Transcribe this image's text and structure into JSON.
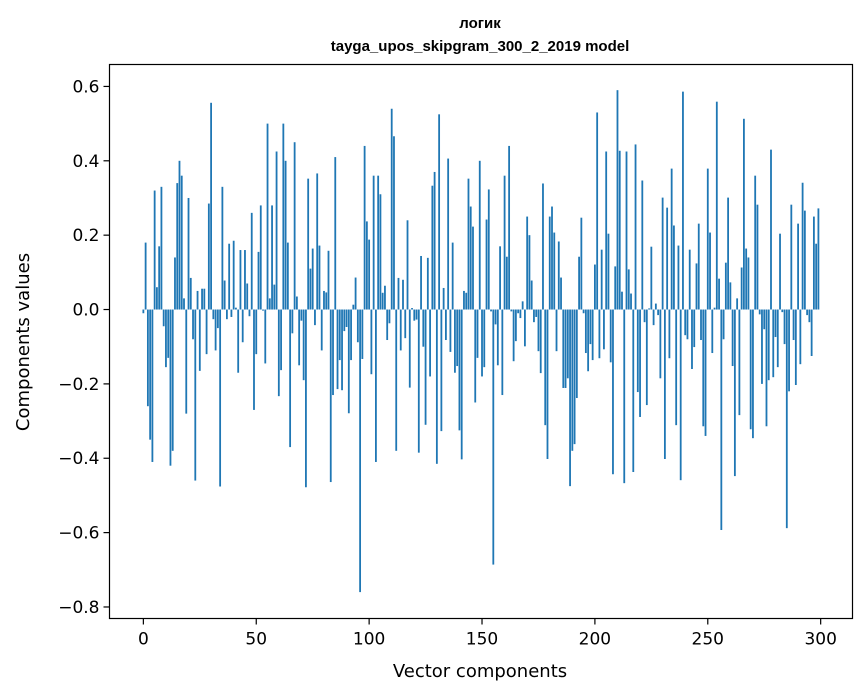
{
  "chart_data": {
    "type": "bar",
    "title": "логик",
    "subtitle": "tayga_upos_skipgram_300_2_2019 model",
    "xlabel": "Vector components",
    "ylabel": "Components values",
    "xlim": [
      -15.0,
      314.1
    ],
    "ylim": [
      -0.831,
      0.659
    ],
    "xticks": [
      0,
      50,
      100,
      150,
      200,
      250,
      300
    ],
    "xtick_labels": [
      "0",
      "50",
      "100",
      "150",
      "200",
      "250",
      "300"
    ],
    "yticks": [
      0.6,
      0.4,
      0.2,
      0.0,
      -0.2,
      -0.4,
      -0.6,
      -0.8
    ],
    "ytick_labels": [
      "0.6",
      "0.4",
      "0.2",
      "0.0",
      "−0.2",
      "−0.4",
      "−0.6",
      "−0.8"
    ],
    "grid": false,
    "bar_width": 0.8,
    "color": "#1f77b4",
    "values": [
      -0.01,
      0.18,
      -0.26,
      -0.35,
      -0.41,
      0.32,
      0.06,
      0.17,
      0.33,
      -0.045,
      -0.155,
      -0.13,
      -0.42,
      -0.38,
      0.14,
      0.34,
      0.4,
      0.36,
      0.03,
      -0.28,
      0.3,
      0.085,
      -0.08,
      -0.46,
      0.05,
      -0.165,
      0.056,
      0.056,
      -0.12,
      0.285,
      0.556,
      -0.026,
      -0.11,
      -0.05,
      -0.476,
      0.33,
      0.078,
      -0.026,
      0.177,
      -0.02,
      0.185,
      0.005,
      -0.17,
      0.16,
      -0.088,
      0.16,
      0.07,
      -0.018,
      0.26,
      -0.27,
      -0.12,
      0.155,
      0.28,
      -0.003,
      -0.145,
      0.5,
      0.03,
      0.28,
      0.067,
      0.425,
      -0.233,
      -0.163,
      0.5,
      0.4,
      0.18,
      -0.37,
      -0.064,
      0.45,
      0.035,
      -0.15,
      -0.03,
      -0.19,
      -0.478,
      0.352,
      0.11,
      0.164,
      -0.042,
      0.366,
      0.172,
      -0.11,
      0.05,
      0.046,
      0.158,
      -0.464,
      -0.23,
      0.41,
      -0.214,
      -0.136,
      -0.217,
      -0.058,
      -0.047,
      -0.279,
      -0.136,
      0.013,
      0.086,
      -0.088,
      -0.76,
      -0.133,
      0.44,
      0.237,
      0.188,
      -0.174,
      0.36,
      -0.41,
      0.36,
      0.31,
      0.045,
      0.064,
      -0.082,
      -0.037,
      0.54,
      0.466,
      -0.38,
      0.085,
      -0.11,
      0.08,
      -0.077,
      0.24,
      -0.21,
      0.004,
      -0.03,
      -0.027,
      -0.385,
      0.144,
      -0.1,
      -0.31,
      0.139,
      -0.18,
      0.333,
      0.37,
      -0.415,
      0.525,
      -0.327,
      0.058,
      -0.082,
      0.406,
      -0.114,
      0.18,
      -0.17,
      -0.152,
      -0.325,
      -0.403,
      0.05,
      0.045,
      0.352,
      0.277,
      0.223,
      -0.25,
      -0.13,
      0.4,
      -0.18,
      -0.155,
      0.242,
      0.323,
      -0.005,
      -0.686,
      -0.04,
      -0.15,
      0.17,
      -0.23,
      0.36,
      0.142,
      0.44,
      -0.005,
      -0.139,
      -0.085,
      -0.01,
      -0.023,
      0.022,
      -0.099,
      0.25,
      0.2,
      0.078,
      -0.034,
      -0.02,
      -0.112,
      -0.171,
      0.339,
      -0.311,
      -0.402,
      0.25,
      0.277,
      0.207,
      -0.112,
      0.183,
      0.086,
      -0.211,
      -0.211,
      -0.185,
      -0.475,
      -0.38,
      -0.362,
      -0.238,
      0.142,
      0.247,
      -0.01,
      -0.117,
      -0.166,
      -0.093,
      -0.136,
      0.121,
      0.53,
      -0.131,
      0.161,
      -0.107,
      0.425,
      0.204,
      -0.142,
      -0.443,
      0.116,
      0.59,
      0.427,
      0.048,
      -0.467,
      0.425,
      0.108,
      0.043,
      -0.437,
      0.444,
      -0.222,
      -0.289,
      0.347,
      -0.034,
      -0.257,
      0.003,
      0.169,
      -0.042,
      0.016,
      -0.015,
      -0.185,
      0.301,
      -0.402,
      0.274,
      -0.131,
      0.379,
      0.226,
      -0.311,
      0.172,
      -0.459,
      0.586,
      -0.069,
      -0.08,
      0.161,
      -0.16,
      -0.101,
      0.124,
      0.231,
      -0.082,
      -0.314,
      -0.34,
      0.379,
      0.207,
      -0.117,
      0.005,
      0.559,
      0.083,
      -0.593,
      -0.08,
      0.126,
      0.301,
      0.073,
      -0.152,
      -0.448,
      0.03,
      -0.284,
      0.113,
      0.513,
      0.164,
      0.14,
      -0.322,
      -0.346,
      0.36,
      0.282,
      -0.013,
      -0.2,
      -0.053,
      -0.314,
      -0.19,
      0.43,
      -0.182,
      -0.074,
      -0.155,
      0.204,
      -0.007,
      -0.093,
      -0.588,
      -0.22,
      0.282,
      -0.082,
      -0.203,
      0.231,
      -0.147,
      0.341,
      0.266,
      -0.015,
      -0.034,
      -0.125,
      0.25,
      0.177,
      0.272
    ]
  }
}
